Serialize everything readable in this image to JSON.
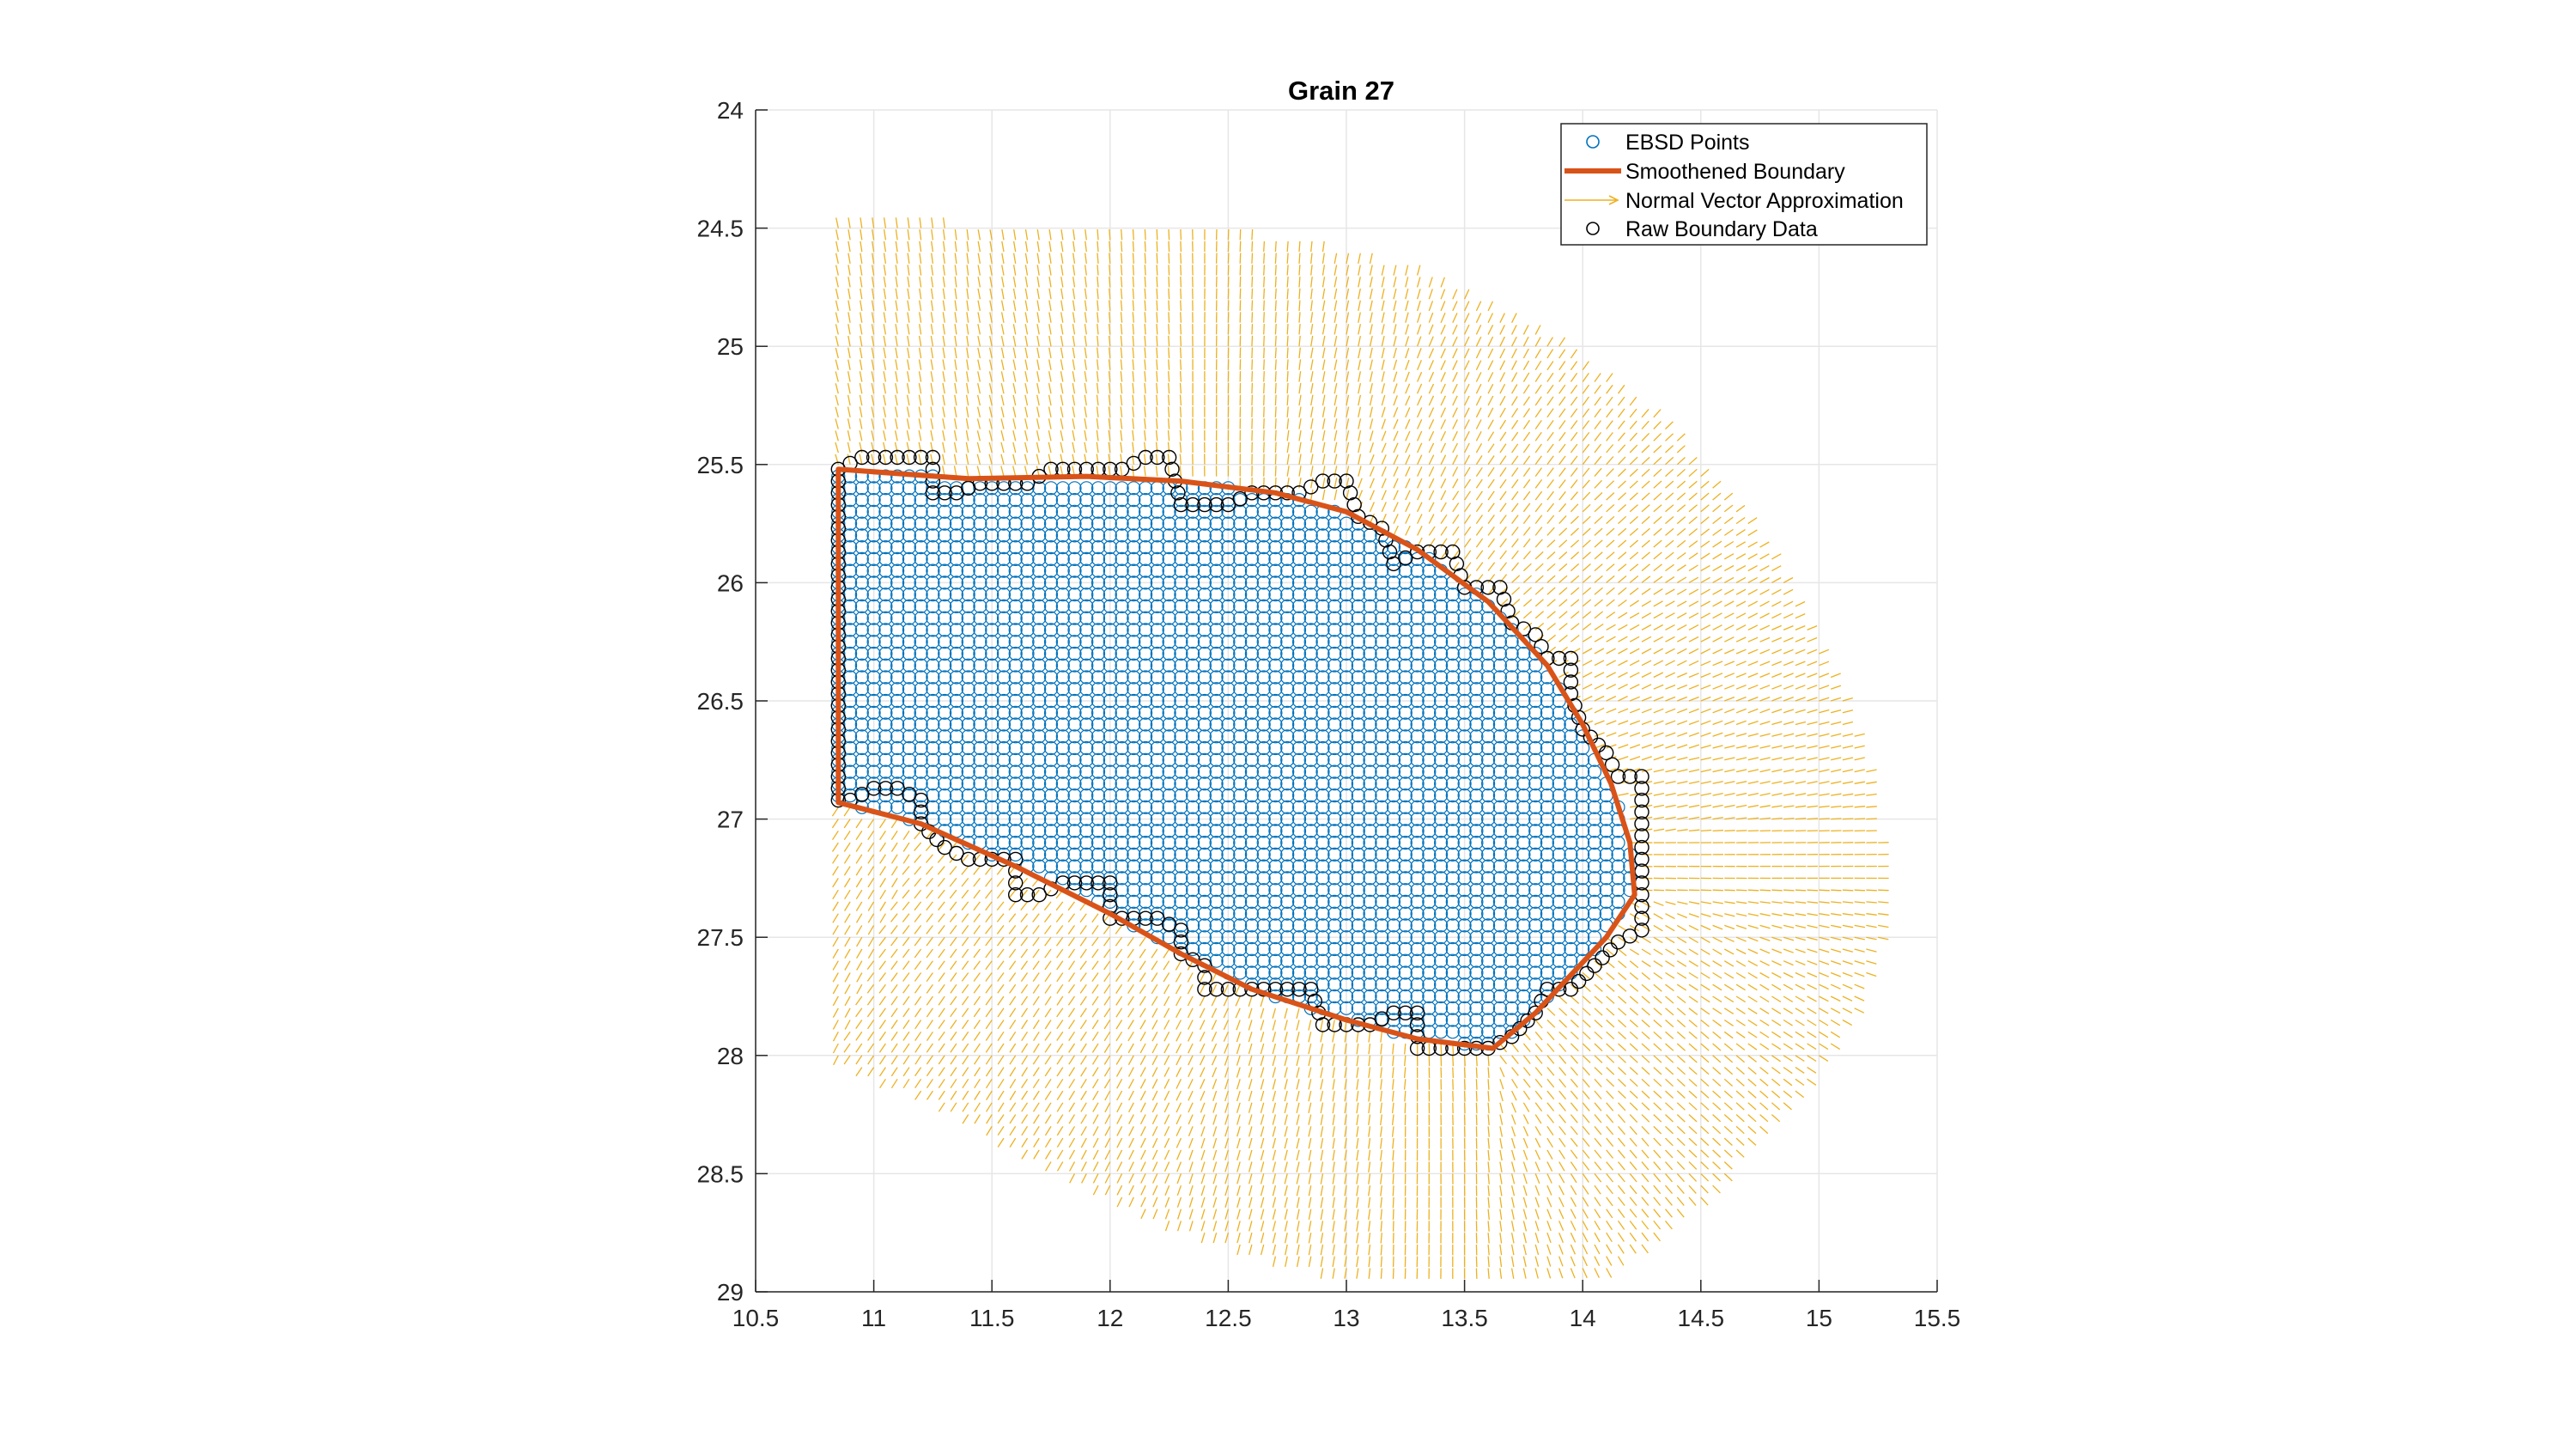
{
  "chart_data": {
    "type": "scatter",
    "title": "Grain 27",
    "xlabel": "",
    "ylabel": "",
    "xlim": [
      10.5,
      15.5
    ],
    "ylim": [
      24,
      29
    ],
    "y_reversed": true,
    "grid": true,
    "legend_position": "top-right",
    "x_ticks": [
      "10.5",
      "11",
      "11.5",
      "12",
      "12.5",
      "13",
      "13.5",
      "14",
      "14.5",
      "15",
      "15.5"
    ],
    "y_ticks": [
      "24",
      "24.5",
      "25",
      "25.5",
      "26",
      "26.5",
      "27",
      "27.5",
      "28",
      "28.5",
      "29"
    ],
    "series": [
      {
        "name": "EBSD Points",
        "color": "#0072BD",
        "marker": "circle"
      },
      {
        "name": "Smoothened Boundary",
        "color": "#D95319",
        "line_width": 3
      },
      {
        "name": "Normal Vector Approximation",
        "color": "#EDB120",
        "style": "quiver"
      },
      {
        "name": "Raw Boundary Data",
        "color": "#000000",
        "marker": "circle"
      }
    ],
    "boundary": [
      [
        10.85,
        25.52
      ],
      [
        11.4,
        25.56
      ],
      [
        11.9,
        25.55
      ],
      [
        12.3,
        25.57
      ],
      [
        12.7,
        25.62
      ],
      [
        13.0,
        25.7
      ],
      [
        13.3,
        25.86
      ],
      [
        13.6,
        26.08
      ],
      [
        13.85,
        26.35
      ],
      [
        14.0,
        26.6
      ],
      [
        14.12,
        26.85
      ],
      [
        14.2,
        27.1
      ],
      [
        14.22,
        27.32
      ],
      [
        14.1,
        27.5
      ],
      [
        13.95,
        27.66
      ],
      [
        13.8,
        27.82
      ],
      [
        13.62,
        27.97
      ],
      [
        13.3,
        27.93
      ],
      [
        13.0,
        27.85
      ],
      [
        12.6,
        27.72
      ],
      [
        12.3,
        27.57
      ],
      [
        12.0,
        27.4
      ],
      [
        11.6,
        27.2
      ],
      [
        11.2,
        27.02
      ],
      [
        10.85,
        26.93
      ]
    ],
    "raw_boundary": [
      [
        10.85,
        25.52
      ],
      [
        10.95,
        25.47
      ],
      [
        11.05,
        25.47
      ],
      [
        11.15,
        25.47
      ],
      [
        11.25,
        25.47
      ],
      [
        11.25,
        25.62
      ],
      [
        11.35,
        25.62
      ],
      [
        11.45,
        25.58
      ],
      [
        11.55,
        25.58
      ],
      [
        11.65,
        25.58
      ],
      [
        11.75,
        25.52
      ],
      [
        11.85,
        25.52
      ],
      [
        11.95,
        25.52
      ],
      [
        12.05,
        25.52
      ],
      [
        12.15,
        25.47
      ],
      [
        12.25,
        25.47
      ],
      [
        12.3,
        25.67
      ],
      [
        12.4,
        25.67
      ],
      [
        12.5,
        25.67
      ],
      [
        12.6,
        25.62
      ],
      [
        12.7,
        25.62
      ],
      [
        12.8,
        25.62
      ],
      [
        12.9,
        25.57
      ],
      [
        13.0,
        25.57
      ],
      [
        13.05,
        25.72
      ],
      [
        13.15,
        25.77
      ],
      [
        13.2,
        25.92
      ],
      [
        13.3,
        25.87
      ],
      [
        13.45,
        25.87
      ],
      [
        13.5,
        26.02
      ],
      [
        13.65,
        26.02
      ],
      [
        13.7,
        26.17
      ],
      [
        13.8,
        26.22
      ],
      [
        13.85,
        26.32
      ],
      [
        13.95,
        26.32
      ],
      [
        13.95,
        26.47
      ],
      [
        14.0,
        26.62
      ],
      [
        14.1,
        26.72
      ],
      [
        14.15,
        26.82
      ],
      [
        14.25,
        26.82
      ],
      [
        14.25,
        26.97
      ],
      [
        14.25,
        27.12
      ],
      [
        14.25,
        27.27
      ],
      [
        14.25,
        27.37
      ],
      [
        14.25,
        27.47
      ],
      [
        14.15,
        27.52
      ],
      [
        14.05,
        27.62
      ],
      [
        13.95,
        27.72
      ],
      [
        13.85,
        27.72
      ],
      [
        13.8,
        27.82
      ],
      [
        13.7,
        27.92
      ],
      [
        13.6,
        27.97
      ],
      [
        13.5,
        27.97
      ],
      [
        13.4,
        27.97
      ],
      [
        13.3,
        27.97
      ],
      [
        13.3,
        27.82
      ],
      [
        13.2,
        27.82
      ],
      [
        13.1,
        27.87
      ],
      [
        13.0,
        27.87
      ],
      [
        12.9,
        27.87
      ],
      [
        12.85,
        27.72
      ],
      [
        12.75,
        27.72
      ],
      [
        12.65,
        27.72
      ],
      [
        12.5,
        27.72
      ],
      [
        12.4,
        27.72
      ],
      [
        12.4,
        27.62
      ],
      [
        12.3,
        27.57
      ],
      [
        12.3,
        27.47
      ],
      [
        12.2,
        27.42
      ],
      [
        12.1,
        27.42
      ],
      [
        12.0,
        27.42
      ],
      [
        12.0,
        27.27
      ],
      [
        11.9,
        27.27
      ],
      [
        11.8,
        27.27
      ],
      [
        11.7,
        27.32
      ],
      [
        11.6,
        27.32
      ],
      [
        11.6,
        27.17
      ],
      [
        11.5,
        27.17
      ],
      [
        11.4,
        27.17
      ],
      [
        11.3,
        27.12
      ],
      [
        11.2,
        27.02
      ],
      [
        11.2,
        26.92
      ],
      [
        11.1,
        26.87
      ],
      [
        11.0,
        26.87
      ],
      [
        10.9,
        26.92
      ],
      [
        10.85,
        26.92
      ],
      [
        10.85,
        26.77
      ],
      [
        10.85,
        26.62
      ],
      [
        10.85,
        26.47
      ],
      [
        10.85,
        26.32
      ],
      [
        10.85,
        26.17
      ],
      [
        10.85,
        26.02
      ],
      [
        10.85,
        25.87
      ],
      [
        10.85,
        25.72
      ]
    ],
    "grid_step": 0.05
  }
}
